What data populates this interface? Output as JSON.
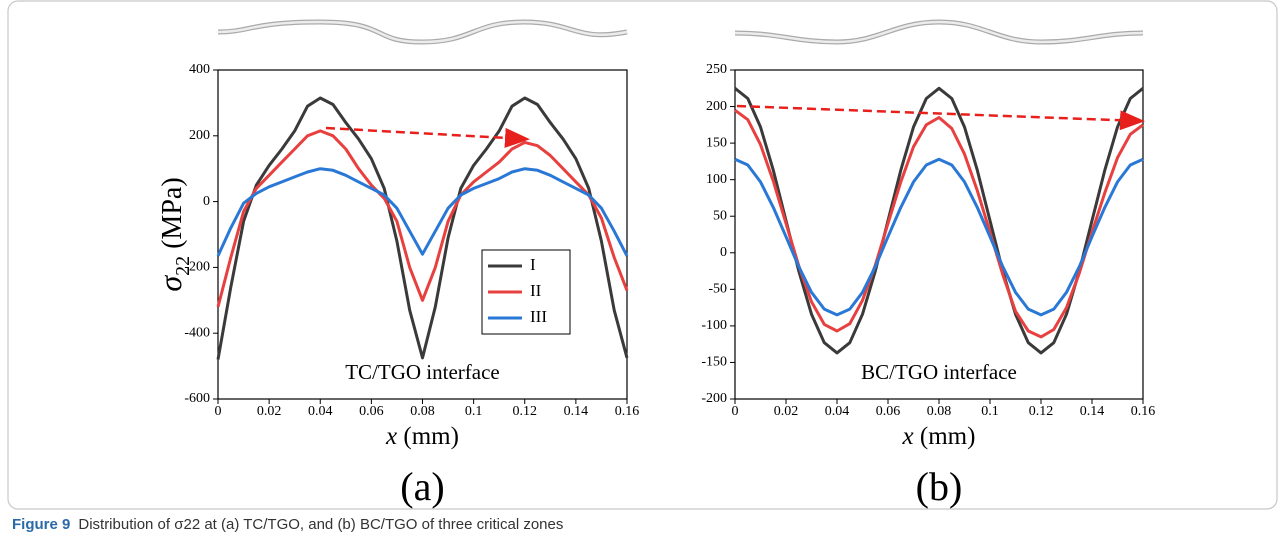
{
  "chart_data": [
    {
      "type": "line",
      "panel": "(a)",
      "y_label": {
        "symbol": "σ",
        "subscript": "22",
        "unit": " (MPa)"
      },
      "x_label": {
        "symbol": "x",
        "unit": " (mm)"
      },
      "annotation": "TC/TGO interface",
      "x": [
        0,
        0.005,
        0.01,
        0.015,
        0.02,
        0.025,
        0.03,
        0.035,
        0.04,
        0.045,
        0.05,
        0.055,
        0.06,
        0.065,
        0.07,
        0.075,
        0.08,
        0.085,
        0.09,
        0.095,
        0.1,
        0.105,
        0.11,
        0.115,
        0.12,
        0.125,
        0.13,
        0.135,
        0.14,
        0.145,
        0.15,
        0.155,
        0.16
      ],
      "xlim": [
        0,
        0.16
      ],
      "xticks": [
        0,
        0.02,
        0.04,
        0.06,
        0.08,
        0.1,
        0.12,
        0.14,
        0.16
      ],
      "ylim": [
        -600,
        400
      ],
      "yticks": [
        -600,
        -400,
        -200,
        0,
        200,
        400
      ],
      "legend": "center-right",
      "series": [
        {
          "name": "I",
          "color": "#3a3a3a",
          "values": [
            -480,
            -260,
            -60,
            50,
            110,
            160,
            215,
            290,
            315,
            295,
            240,
            190,
            130,
            40,
            -120,
            -330,
            -475,
            -320,
            -110,
            40,
            110,
            160,
            215,
            290,
            315,
            295,
            240,
            190,
            130,
            40,
            -120,
            -330,
            -475
          ]
        },
        {
          "name": "II",
          "color": "#e8403f",
          "values": [
            -320,
            -170,
            -30,
            40,
            80,
            120,
            160,
            200,
            215,
            200,
            160,
            100,
            50,
            10,
            -60,
            -200,
            -300,
            -200,
            -60,
            20,
            60,
            90,
            120,
            160,
            180,
            170,
            140,
            100,
            60,
            20,
            -50,
            -170,
            -270
          ]
        },
        {
          "name": "III",
          "color": "#2a78d6",
          "values": [
            -165,
            -80,
            -5,
            25,
            45,
            60,
            75,
            90,
            100,
            95,
            80,
            60,
            40,
            20,
            -20,
            -90,
            -160,
            -90,
            -20,
            20,
            40,
            55,
            70,
            90,
            100,
            95,
            80,
            60,
            40,
            20,
            -20,
            -90,
            -165
          ]
        }
      ]
    },
    {
      "type": "line",
      "panel": "(b)",
      "x_label": {
        "symbol": "x",
        "unit": " (mm)"
      },
      "annotation": "BC/TGO interface",
      "x": [
        0,
        0.005,
        0.01,
        0.015,
        0.02,
        0.025,
        0.03,
        0.035,
        0.04,
        0.045,
        0.05,
        0.055,
        0.06,
        0.065,
        0.07,
        0.075,
        0.08,
        0.085,
        0.09,
        0.095,
        0.1,
        0.105,
        0.11,
        0.115,
        0.12,
        0.125,
        0.13,
        0.135,
        0.14,
        0.145,
        0.15,
        0.155,
        0.16
      ],
      "xlim": [
        0,
        0.16
      ],
      "xticks": [
        0,
        0.02,
        0.04,
        0.06,
        0.08,
        0.1,
        0.12,
        0.14,
        0.16
      ],
      "ylim": [
        -200,
        250
      ],
      "yticks": [
        -200,
        -150,
        -100,
        -50,
        0,
        50,
        100,
        150,
        200,
        250
      ],
      "series": [
        {
          "color": "#3a3a3a",
          "values": [
            225,
            211,
            172,
            113,
            44,
            -25,
            -84,
            -123,
            -137,
            -123,
            -84,
            -25,
            44,
            113,
            172,
            211,
            225,
            211,
            172,
            113,
            44,
            -25,
            -84,
            -123,
            -137,
            -123,
            -84,
            -25,
            44,
            113,
            172,
            211,
            225
          ]
        },
        {
          "color": "#e8403f",
          "values": [
            195,
            182,
            148,
            98,
            40,
            -18,
            -67,
            -98,
            -107,
            -97,
            -65,
            -17,
            40,
            97,
            145,
            175,
            185,
            170,
            135,
            85,
            28,
            -30,
            -80,
            -107,
            -115,
            -105,
            -75,
            -28,
            28,
            82,
            130,
            162,
            175
          ]
        },
        {
          "color": "#2a78d6",
          "values": [
            128,
            120,
            97,
            62,
            22,
            -19,
            -54,
            -77,
            -85,
            -77,
            -54,
            -19,
            22,
            62,
            97,
            120,
            128,
            120,
            97,
            62,
            22,
            -19,
            -54,
            -77,
            -85,
            -77,
            -54,
            -19,
            22,
            62,
            97,
            120,
            128
          ]
        }
      ]
    }
  ],
  "caption": {
    "label": "Figure 9",
    "text": "Distribution of σ22 at (a) TC/TGO, and (b) BC/TGO of three critical zones"
  }
}
